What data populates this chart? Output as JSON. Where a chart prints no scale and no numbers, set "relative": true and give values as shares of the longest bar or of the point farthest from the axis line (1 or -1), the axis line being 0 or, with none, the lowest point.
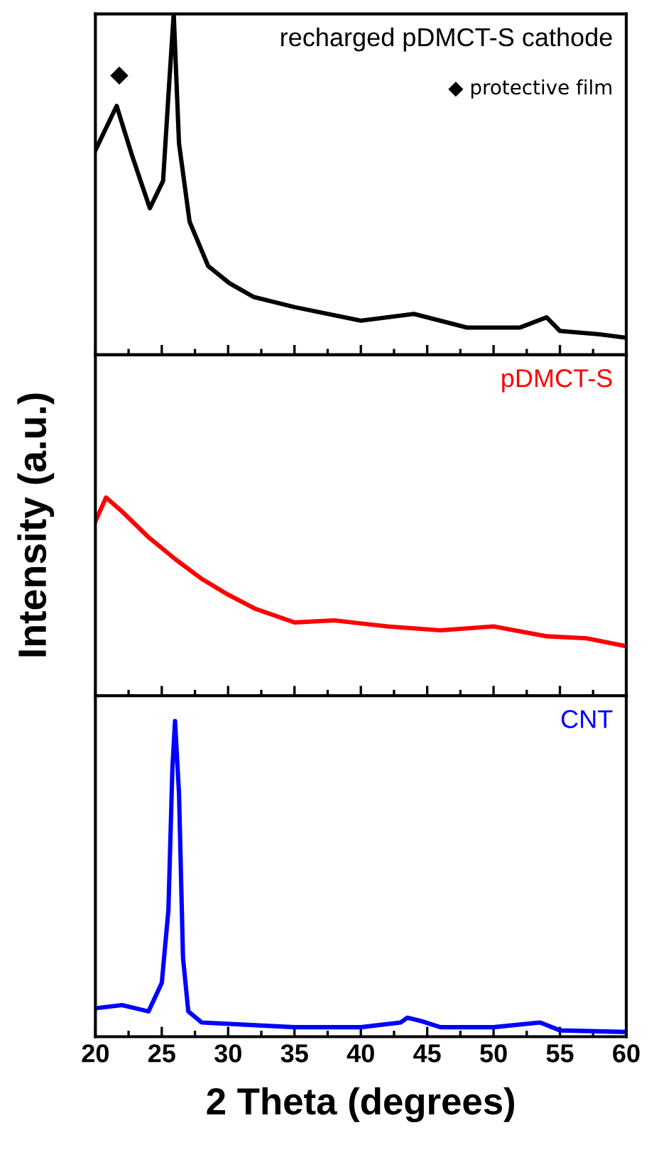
{
  "chart_data": [
    {
      "type": "line",
      "relative": true,
      "xlim": [
        20,
        60
      ],
      "xticks": [
        20,
        25,
        30,
        35,
        40,
        45,
        50,
        55,
        60
      ],
      "tick_labels": false,
      "grid": false,
      "series": [
        {
          "name": "recharged pDMCT-S cathode",
          "color": "#000000",
          "x": [
            20,
            21.6,
            22.8,
            24.1,
            25.1,
            25.5,
            25.9,
            26.3,
            27.1,
            28.5,
            30.1,
            31.9,
            35,
            40,
            44,
            48,
            52,
            54,
            55,
            58,
            60
          ],
          "values": [
            0.6,
            0.73,
            0.58,
            0.43,
            0.51,
            0.76,
            1.0,
            0.62,
            0.39,
            0.26,
            0.21,
            0.17,
            0.14,
            0.1,
            0.12,
            0.08,
            0.08,
            0.11,
            0.07,
            0.06,
            0.05
          ]
        }
      ],
      "annotations": [
        "◆",
        "◆ protective film"
      ]
    },
    {
      "type": "line",
      "relative": true,
      "xlim": [
        20,
        60
      ],
      "xticks": [
        20,
        25,
        30,
        35,
        40,
        45,
        50,
        55,
        60
      ],
      "tick_labels": false,
      "grid": false,
      "ylabel": "Intensity (a.u.)",
      "series": [
        {
          "name": "pDMCT-S",
          "color": "#ff0000",
          "x": [
            20,
            20.8,
            22,
            24,
            26,
            28,
            30,
            32,
            35,
            38,
            42,
            46,
            50,
            54,
            57,
            60
          ],
          "values": [
            0.88,
            1.0,
            0.93,
            0.8,
            0.69,
            0.59,
            0.51,
            0.44,
            0.37,
            0.38,
            0.35,
            0.33,
            0.35,
            0.3,
            0.29,
            0.25
          ]
        }
      ]
    },
    {
      "type": "line",
      "relative": true,
      "xlim": [
        20,
        60
      ],
      "xticks": [
        20,
        25,
        30,
        35,
        40,
        45,
        50,
        55,
        60
      ],
      "tick_labels": "x",
      "grid": false,
      "xlabel": "2 Theta (degrees)",
      "series": [
        {
          "name": "CNT",
          "color": "#0000ff",
          "x": [
            20,
            22,
            24,
            25,
            25.5,
            25.8,
            26,
            26.3,
            26.6,
            27,
            28,
            35,
            40,
            43,
            43.5,
            44.5,
            46,
            50,
            53.5,
            55,
            60
          ],
          "values": [
            0.09,
            0.1,
            0.08,
            0.17,
            0.4,
            0.85,
            1.0,
            0.77,
            0.25,
            0.08,
            0.045,
            0.03,
            0.03,
            0.045,
            0.06,
            0.05,
            0.03,
            0.03,
            0.045,
            0.02,
            0.015
          ]
        }
      ]
    }
  ]
}
